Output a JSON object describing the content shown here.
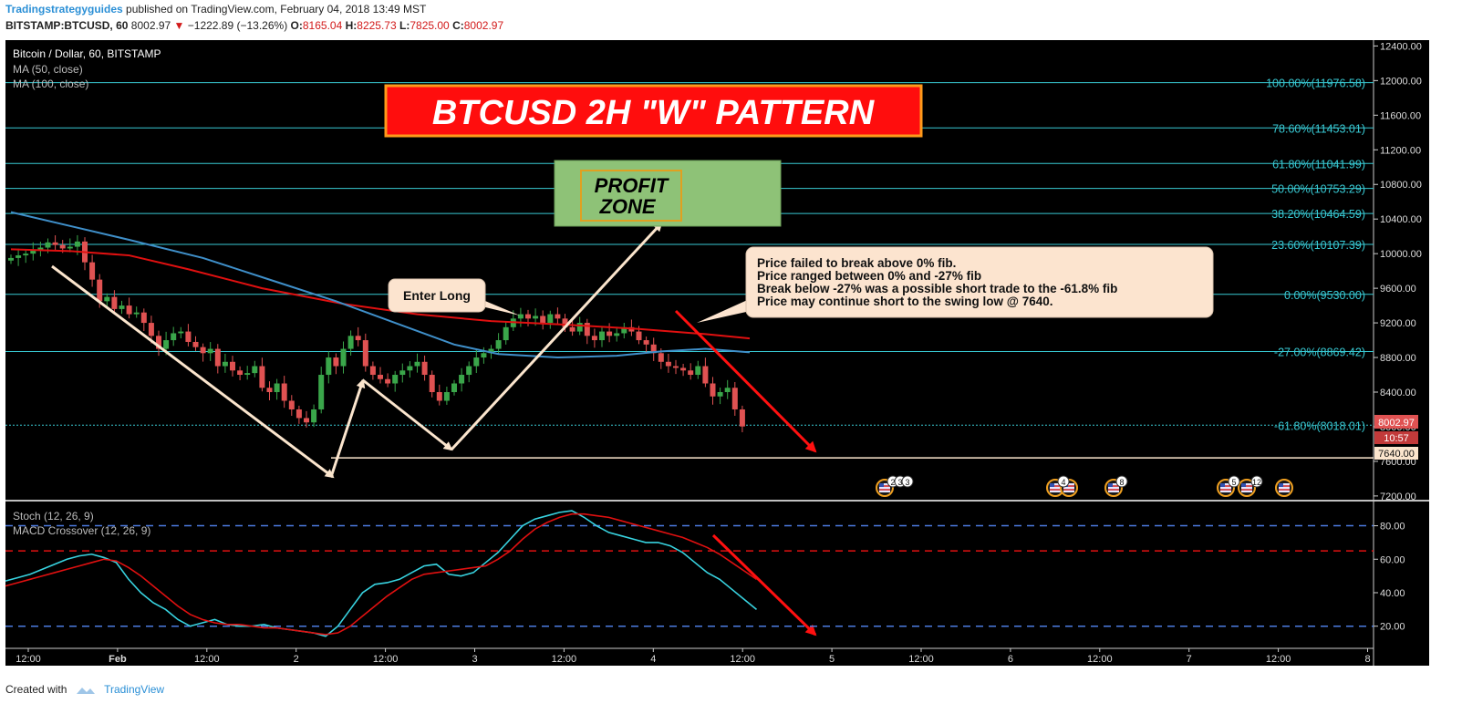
{
  "header": {
    "author": "Tradingstrategyguides",
    "published": "published on TradingView.com, February 04, 2018 13:49 MST",
    "symbol": "BITSTAMP:BTCUSD, 60",
    "last": "8002.97",
    "change": "−1222.89 (−13.26%)",
    "open_label": "O:",
    "open": "8165.04",
    "high_label": "H:",
    "high": "8225.73",
    "low_label": "L:",
    "low": "7825.00",
    "close_label": "C:",
    "close": "8002.97"
  },
  "legend": {
    "pair": "Bitcoin / Dollar, 60, BITSTAMP",
    "ma50": "MA (50, close)",
    "ma100": "MA (100, close)",
    "stoch": "Stoch (12, 26, 9)",
    "macd": "MACD Crossover (12, 26, 9)"
  },
  "annotations": {
    "title": "BTCUSD 2H \"W\" PATTERN",
    "profit_zone_line1": "PROFIT",
    "profit_zone_line2": "ZONE",
    "enter_long": "Enter Long",
    "callout": [
      "Price failed to break above 0% fib.",
      "Price ranged between 0% and -27% fib",
      "Break below -27% was a possible short trade to the -61.8% fib",
      "Price may continue short to the swing low @ 7640."
    ]
  },
  "price_tags": {
    "last": "8002.97",
    "countdown": "10:57",
    "swing": "7640.00"
  },
  "colors": {
    "background": "#000000",
    "fib": "#38c9d3",
    "ma50": "#e01010",
    "ma100": "#3f8fc9",
    "stoch": "#38d3e0",
    "macd": "#e01010",
    "up": "#3aa64a",
    "down": "#e05252",
    "title_bg": "#ff0d0d",
    "title_border": "#ff9a1a",
    "profit_bg": "#8ec277",
    "callout_bg": "#fce4cf"
  },
  "footer": {
    "created_with": "Created with",
    "brand": "TradingView"
  },
  "events": [
    "2",
    "3",
    "3",
    "4",
    "8",
    "5",
    "12"
  ],
  "chart_data": [
    {
      "type": "candlestick",
      "title": "Bitcoin / Dollar, 60, BITSTAMP",
      "ylim": [
        7000,
        12600
      ],
      "y_ticks": [
        7200,
        7600,
        8000,
        8400,
        8800,
        9200,
        9600,
        10000,
        10400,
        10800,
        11200,
        11600,
        12000,
        12400
      ],
      "x_tick_labels": [
        "12:00",
        "Feb",
        "12:00",
        "2",
        "12:00",
        "3",
        "12:00",
        "4",
        "12:00",
        "5",
        "12:00",
        "6",
        "12:00",
        "7",
        "12:00",
        "8"
      ],
      "fib_levels": [
        {
          "label": "100.00%(11976.58)",
          "value": 11976.58
        },
        {
          "label": "78.60%(11453.01)",
          "value": 11453.01
        },
        {
          "label": "61.80%(11041.99)",
          "value": 11041.99
        },
        {
          "label": "50.00%(10753.29)",
          "value": 10753.29
        },
        {
          "label": "38.20%(10464.59)",
          "value": 10464.59
        },
        {
          "label": "23.60%(10107.39)",
          "value": 10107.39
        },
        {
          "label": "0.00%(9530.00)",
          "value": 9530.0
        },
        {
          "label": "-27.00%(8869.42)",
          "value": 8869.42
        },
        {
          "label": "-61.80%(8018.01)",
          "value": 8018.01
        }
      ],
      "swing_low": 7640,
      "closes": [
        9950,
        9980,
        10000,
        10040,
        10070,
        10130,
        10100,
        10060,
        10080,
        10140,
        9900,
        9700,
        9450,
        9500,
        9360,
        9400,
        9300,
        9320,
        9200,
        9050,
        8900,
        9000,
        9080,
        9100,
        8980,
        8920,
        8850,
        8900,
        8700,
        8750,
        8650,
        8600,
        8620,
        8700,
        8450,
        8400,
        8500,
        8300,
        8200,
        8100,
        8050,
        8200,
        8600,
        8800,
        8700,
        8900,
        9050,
        9000,
        8700,
        8600,
        8550,
        8500,
        8600,
        8650,
        8700,
        8750,
        8600,
        8400,
        8300,
        8400,
        8500,
        8600,
        8700,
        8800,
        8850,
        8900,
        9000,
        9150,
        9250,
        9300,
        9250,
        9280,
        9200,
        9300,
        9250,
        9150,
        9100,
        9200,
        9050,
        9000,
        9100,
        9050,
        9080,
        9150,
        9100,
        9000,
        8950,
        8850,
        8750,
        8700,
        8680,
        8650,
        8600,
        8700,
        8500,
        8350,
        8400,
        8450,
        8200,
        8003
      ],
      "series": [
        {
          "name": "MA (50, close)",
          "points": [
            [
              0,
              10050
            ],
            [
              8,
              10030
            ],
            [
              16,
              9980
            ],
            [
              24,
              9820
            ],
            [
              34,
              9600
            ],
            [
              45,
              9420
            ],
            [
              55,
              9300
            ],
            [
              65,
              9220
            ],
            [
              75,
              9180
            ],
            [
              85,
              9130
            ],
            [
              94,
              9070
            ],
            [
              100,
              9020
            ]
          ]
        },
        {
          "name": "MA (100, close)",
          "points": [
            [
              0,
              10480
            ],
            [
              8,
              10320
            ],
            [
              16,
              10160
            ],
            [
              26,
              9950
            ],
            [
              35,
              9700
            ],
            [
              44,
              9450
            ],
            [
              52,
              9200
            ],
            [
              60,
              8950
            ],
            [
              66,
              8840
            ],
            [
              74,
              8800
            ],
            [
              82,
              8820
            ],
            [
              88,
              8870
            ],
            [
              94,
              8900
            ],
            [
              100,
              8860
            ]
          ]
        }
      ]
    },
    {
      "type": "line",
      "title": "Stoch (12, 26, 9)",
      "ylim": [
        0,
        100
      ],
      "y_ticks": [
        20,
        40,
        60,
        80
      ],
      "reference_lines": [
        80,
        65,
        20
      ],
      "series": [
        {
          "name": "Stoch (12, 26, 9)",
          "values": [
            47,
            49,
            51,
            54,
            57,
            60,
            62,
            63,
            61,
            58,
            48,
            40,
            34,
            30,
            24,
            20,
            22,
            24,
            21,
            20,
            20,
            21,
            19,
            18,
            17,
            16,
            14,
            20,
            30,
            40,
            45,
            46,
            48,
            52,
            56,
            57,
            51,
            50,
            52,
            58,
            64,
            72,
            80,
            84,
            86,
            88,
            89,
            85,
            80,
            76,
            74,
            72,
            70,
            70,
            68,
            64,
            58,
            52,
            48,
            42,
            36,
            30
          ]
        },
        {
          "name": "MACD Crossover (12, 26, 9)",
          "values": [
            44,
            46,
            48,
            50,
            52,
            54,
            56,
            58,
            60,
            59,
            55,
            50,
            44,
            38,
            32,
            27,
            24,
            22,
            21,
            21,
            20,
            19,
            19,
            18,
            17,
            16,
            15,
            16,
            20,
            26,
            32,
            38,
            43,
            48,
            51,
            52,
            53,
            54,
            55,
            56,
            60,
            65,
            72,
            78,
            82,
            85,
            87,
            87,
            86,
            85,
            83,
            81,
            79,
            77,
            75,
            73,
            70,
            67,
            63,
            58,
            53,
            48
          ]
        }
      ]
    }
  ]
}
